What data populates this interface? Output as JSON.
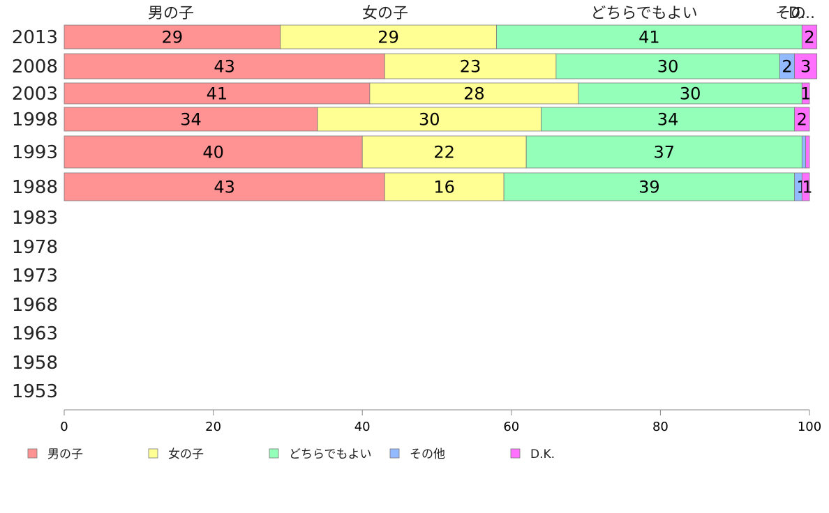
{
  "chart_data": {
    "type": "bar",
    "orientation": "horizontal",
    "stacked": true,
    "categories": [
      "2013",
      "2008",
      "2003",
      "1998",
      "1993",
      "1988",
      "1983",
      "1978",
      "1973",
      "1968",
      "1963",
      "1958",
      "1953"
    ],
    "series": [
      {
        "name": "男の子",
        "color": "#ff9393",
        "values": [
          29,
          43,
          41,
          34,
          40,
          43,
          null,
          null,
          null,
          null,
          null,
          null,
          null
        ]
      },
      {
        "name": "女の子",
        "color": "#ffff93",
        "values": [
          29,
          23,
          28,
          30,
          22,
          16,
          null,
          null,
          null,
          null,
          null,
          null,
          null
        ]
      },
      {
        "name": "どちらでもよい",
        "color": "#93ffb9",
        "values": [
          41,
          30,
          30,
          34,
          37,
          39,
          null,
          null,
          null,
          null,
          null,
          null,
          null
        ]
      },
      {
        "name": "その他",
        "color": "#93b9ff",
        "values": [
          0,
          2,
          0,
          0,
          0.5,
          1,
          null,
          null,
          null,
          null,
          null,
          null,
          null
        ]
      },
      {
        "name": "D.K.",
        "color": "#ff70ff",
        "values": [
          2,
          3,
          1,
          2,
          0.5,
          1,
          null,
          null,
          null,
          null,
          null,
          null,
          null
        ]
      }
    ],
    "segment_labels": [
      [
        "29",
        "29",
        "41",
        "",
        "2"
      ],
      [
        "43",
        "23",
        "30",
        "2",
        "3"
      ],
      [
        "41",
        "28",
        "30",
        "",
        "1"
      ],
      [
        "34",
        "30",
        "34",
        "",
        "2"
      ],
      [
        "40",
        "22",
        "37",
        "",
        ""
      ],
      [
        "43",
        "16",
        "39",
        "1",
        "1"
      ]
    ],
    "top_labels": [
      "男の子",
      "女の子",
      "どちらでもよい",
      "その",
      "D..."
    ],
    "xlim": [
      0,
      100
    ],
    "xticks": [
      "0",
      "20",
      "40",
      "60",
      "80",
      "100"
    ],
    "legend": [
      "男の子",
      "女の子",
      "どちらでもよい",
      "その他",
      "D.K."
    ],
    "legend_position": "bottom",
    "grid": false,
    "title": "",
    "xlabel": "",
    "ylabel": ""
  }
}
